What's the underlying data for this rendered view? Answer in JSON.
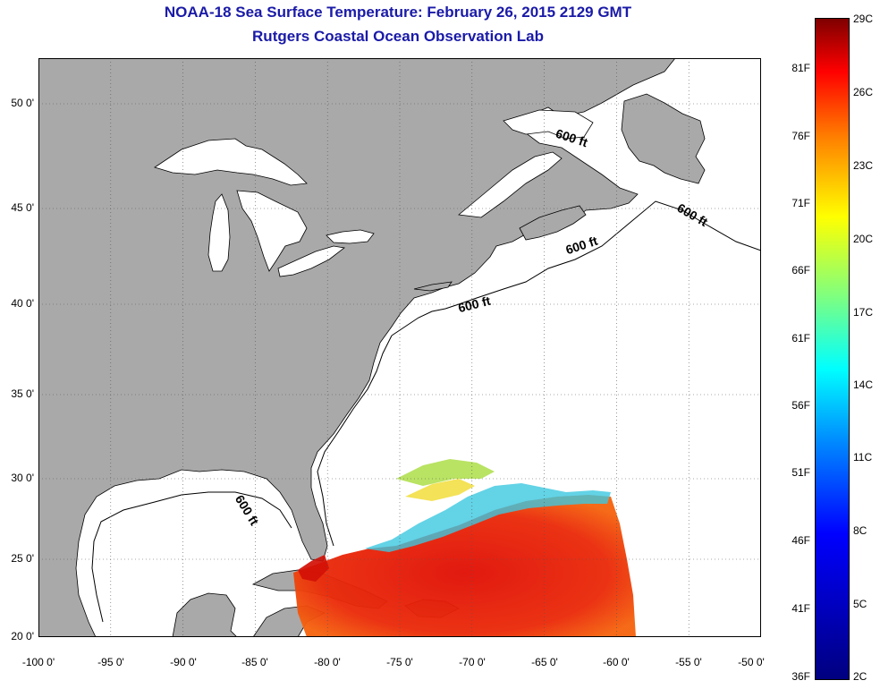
{
  "title": {
    "line1": "NOAA-18 Sea Surface Temperature:  February 26, 2015 2129 GMT",
    "line2": "Rutgers Coastal Ocean Observation Lab"
  },
  "axes": {
    "lon_ticks": [
      "-100 0'",
      "-95 0'",
      "-90 0'",
      "-85 0'",
      "-80 0'",
      "-75 0'",
      "-70 0'",
      "-65 0'",
      "-60 0'",
      "-55 0'",
      "-50 0'"
    ],
    "lat_ticks": [
      "20 0'",
      "25 0'",
      "30 0'",
      "35 0'",
      "40 0'",
      "45 0'",
      "50 0'"
    ],
    "lon_range": [
      -100,
      -50
    ],
    "lat_range": [
      20,
      52.5
    ]
  },
  "isobath_labels": [
    "600 ft",
    "600 ft",
    "600 ft",
    "600 ft",
    "600 ft"
  ],
  "colorbar": {
    "fahrenheit": [
      "81F",
      "76F",
      "71F",
      "66F",
      "61F",
      "56F",
      "51F",
      "46F",
      "41F",
      "36F"
    ],
    "celsius": [
      "29C",
      "26C",
      "23C",
      "20C",
      "17C",
      "14C",
      "11C",
      "8C",
      "5C",
      "2C"
    ]
  },
  "colors": {
    "land": "#a9a9a9",
    "water": "#ffffff",
    "title": "#1a1aa8",
    "warm_sst": "#e8140c",
    "gulf_stream_edge": "#2ad4e6"
  }
}
